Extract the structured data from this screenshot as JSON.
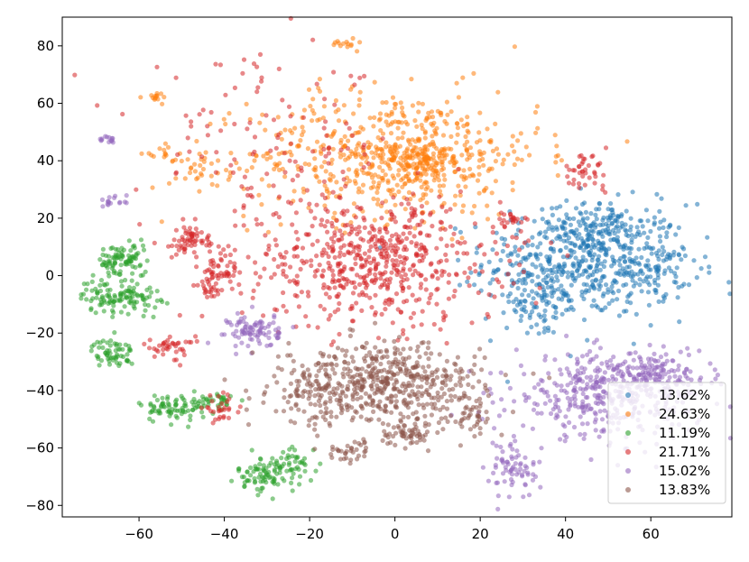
{
  "chart_data": {
    "type": "scatter",
    "title": "",
    "xlabel": "",
    "ylabel": "",
    "xlim": [
      -78,
      79
    ],
    "ylim": [
      -84,
      90
    ],
    "x_ticks": [
      -60,
      -40,
      -20,
      0,
      20,
      40,
      60
    ],
    "y_ticks": [
      -80,
      -60,
      -40,
      -20,
      0,
      20,
      40,
      60,
      80
    ],
    "x_tick_labels": [
      "−60",
      "−40",
      "−20",
      "0",
      "20",
      "40",
      "60"
    ],
    "y_tick_labels": [
      "−80",
      "−60",
      "−40",
      "−20",
      "0",
      "20",
      "40",
      "60",
      "80"
    ],
    "grid": false,
    "legend_position": "bottom-right",
    "series": [
      {
        "name": "13.62%",
        "color": "#1f77b4",
        "clusters": [
          {
            "cx": 45,
            "cy": 5,
            "sx": 12,
            "sy": 10,
            "n": 520
          },
          {
            "cx": 47,
            "cy": 17,
            "sx": 5,
            "sy": 4,
            "n": 90
          },
          {
            "cx": 62,
            "cy": 2,
            "sx": 4,
            "sy": 5,
            "n": 60
          },
          {
            "cx": 33,
            "cy": -10,
            "sx": 6,
            "sy": 6,
            "n": 80
          }
        ]
      },
      {
        "name": "24.63%",
        "color": "#ff7f0e",
        "clusters": [
          {
            "cx": 0,
            "cy": 42,
            "sx": 17,
            "sy": 11,
            "n": 600
          },
          {
            "cx": 5,
            "cy": 40,
            "sx": 4,
            "sy": 3,
            "n": 110
          },
          {
            "cx": -12,
            "cy": 81,
            "sx": 1.5,
            "sy": 1,
            "n": 14
          },
          {
            "cx": -56,
            "cy": 62,
            "sx": 1.5,
            "sy": 1,
            "n": 14
          },
          {
            "cx": -55,
            "cy": 42,
            "sx": 2,
            "sy": 1.5,
            "n": 14
          },
          {
            "cx": -45,
            "cy": 38,
            "sx": 4,
            "sy": 4,
            "n": 30
          }
        ]
      },
      {
        "name": "11.19%",
        "color": "#2ca02c",
        "clusters": [
          {
            "cx": -64,
            "cy": 5,
            "sx": 3,
            "sy": 3,
            "n": 90
          },
          {
            "cx": -68,
            "cy": -7,
            "sx": 3,
            "sy": 3,
            "n": 60
          },
          {
            "cx": -61,
            "cy": -7,
            "sx": 3,
            "sy": 3,
            "n": 60
          },
          {
            "cx": -66,
            "cy": -27,
            "sx": 2.5,
            "sy": 2.5,
            "n": 60
          },
          {
            "cx": -53,
            "cy": -46,
            "sx": 3.5,
            "sy": 2.5,
            "n": 70
          },
          {
            "cx": -42,
            "cy": -44,
            "sx": 2.5,
            "sy": 2,
            "n": 40
          },
          {
            "cx": -29,
            "cy": -69,
            "sx": 4,
            "sy": 3,
            "n": 100
          },
          {
            "cx": -24,
            "cy": -63,
            "sx": 2,
            "sy": 2,
            "n": 20
          }
        ]
      },
      {
        "name": "21.71%",
        "color": "#d62728",
        "clusters": [
          {
            "cx": -5,
            "cy": 5,
            "sx": 15,
            "sy": 11,
            "n": 600
          },
          {
            "cx": -48,
            "cy": 12,
            "sx": 4,
            "sy": 3,
            "n": 60
          },
          {
            "cx": -40,
            "cy": 3,
            "sx": 3,
            "sy": 3,
            "n": 40
          },
          {
            "cx": -43,
            "cy": -4,
            "sx": 2,
            "sy": 2,
            "n": 30
          },
          {
            "cx": -53,
            "cy": -25,
            "sx": 3,
            "sy": 2,
            "n": 40
          },
          {
            "cx": -41,
            "cy": -46,
            "sx": 2,
            "sy": 2,
            "n": 30
          },
          {
            "cx": 44,
            "cy": 36,
            "sx": 3,
            "sy": 3,
            "n": 40
          },
          {
            "cx": 28,
            "cy": 19,
            "sx": 2,
            "sy": 2,
            "n": 25
          },
          {
            "cx": -30,
            "cy": 45,
            "sx": 15,
            "sy": 15,
            "n": 120
          }
        ]
      },
      {
        "name": "15.02%",
        "color": "#9467bd",
        "clusters": [
          {
            "cx": 50,
            "cy": -42,
            "sx": 11,
            "sy": 7,
            "n": 400
          },
          {
            "cx": 60,
            "cy": -33,
            "sx": 8,
            "sy": 4,
            "n": 120
          },
          {
            "cx": 28,
            "cy": -68,
            "sx": 3,
            "sy": 5,
            "n": 70
          },
          {
            "cx": -33,
            "cy": -19,
            "sx": 3,
            "sy": 3,
            "n": 90
          },
          {
            "cx": -67,
            "cy": 47,
            "sx": 1.2,
            "sy": 0.8,
            "n": 14
          },
          {
            "cx": -66,
            "cy": 26,
            "sx": 1.5,
            "sy": 1.2,
            "n": 16
          }
        ]
      },
      {
        "name": "13.83%",
        "color": "#8c564b",
        "clusters": [
          {
            "cx": -3,
            "cy": -38,
            "sx": 12,
            "sy": 7,
            "n": 550
          },
          {
            "cx": 3,
            "cy": -55,
            "sx": 3,
            "sy": 2,
            "n": 50
          },
          {
            "cx": -10,
            "cy": -61,
            "sx": 3,
            "sy": 2,
            "n": 35
          },
          {
            "cx": 18,
            "cy": -48,
            "sx": 3,
            "sy": 4,
            "n": 40
          },
          {
            "cx": -22,
            "cy": -42,
            "sx": 3,
            "sy": 3,
            "n": 40
          }
        ]
      }
    ]
  }
}
